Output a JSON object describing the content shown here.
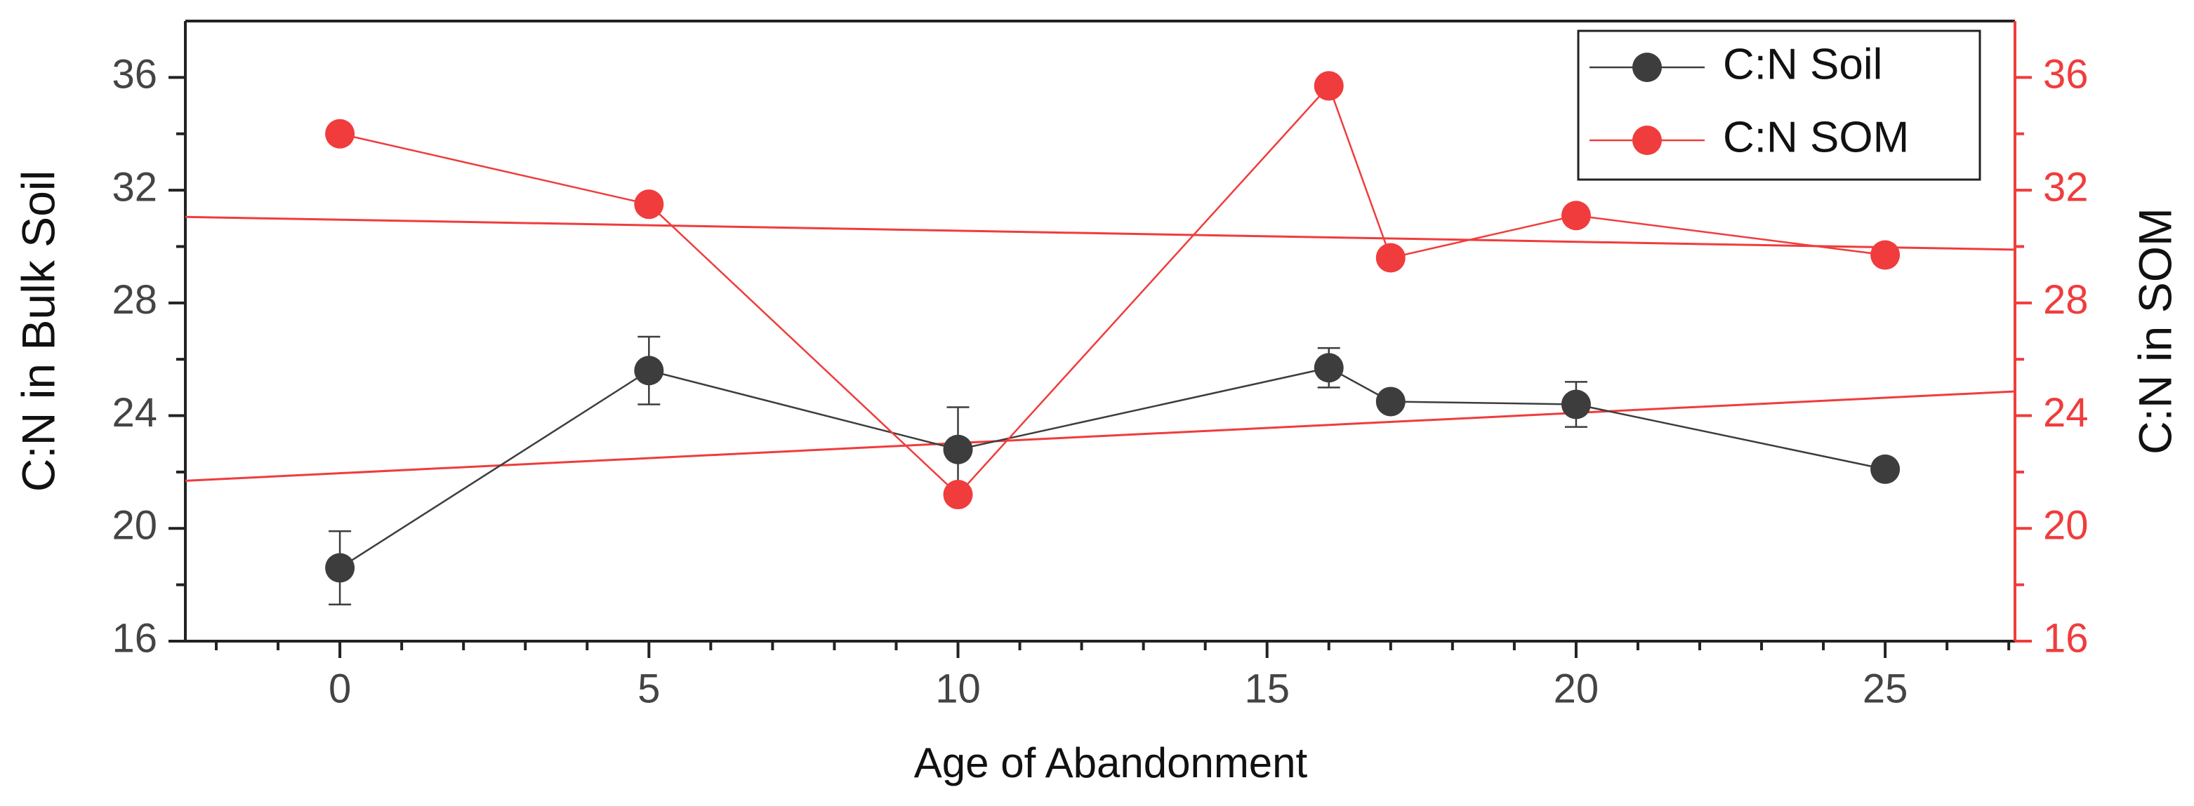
{
  "chart_data": {
    "type": "line",
    "x_label": "Age of Abandonment",
    "y_label": "C:N in Bulk Soil",
    "y2_label": "C:N in SOM",
    "x": [
      0,
      5,
      10,
      16,
      17,
      20,
      25
    ],
    "series": [
      {
        "name": "C:N Soil",
        "color": "#3d3d3d",
        "values": [
          18.6,
          25.6,
          22.8,
          25.7,
          24.5,
          24.4,
          22.1
        ],
        "errors": [
          1.3,
          1.2,
          1.5,
          0.7,
          null,
          0.8,
          null
        ]
      },
      {
        "name": "C:N SOM",
        "color": "#f03c3c",
        "axis": "y2",
        "values": [
          34.0,
          31.5,
          21.2,
          35.7,
          29.6,
          31.1,
          29.7
        ]
      }
    ],
    "fits": [
      {
        "color": "#f03c3c",
        "x": [
          -2.5,
          27.1
        ],
        "values": [
          21.69,
          24.86
        ]
      },
      {
        "color": "#f03c3c",
        "axis": "y2",
        "x": [
          -2.5,
          27.1
        ],
        "values": [
          31.05,
          29.89
        ]
      }
    ],
    "xlim": [
      -2.5,
      27.1
    ],
    "xticks": [
      0,
      5,
      10,
      15,
      20,
      25
    ],
    "xminor": 4,
    "ylim": [
      16,
      38
    ],
    "yticks": [
      16,
      20,
      24,
      28,
      32,
      36
    ],
    "yminor": 1,
    "y2lim": [
      16,
      38
    ],
    "y2ticks": [
      16,
      20,
      24,
      28,
      32,
      36
    ],
    "y2color": "#f03c3c",
    "legend": "top-right",
    "grid": false
  }
}
